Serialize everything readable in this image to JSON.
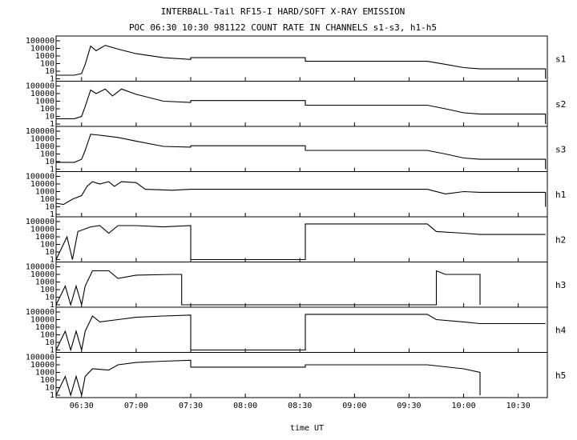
{
  "title": "INTERBALL-Tail RF15-I HARD/SOFT X-RAY EMISSION",
  "subtitle": "POC 06:30 10:30 981122  COUNT RATE IN CHANNELS s1-s3, h1-h5",
  "chart_data": {
    "type": "line",
    "title": "INTERBALL-Tail RF15-I HARD/SOFT X-RAY EMISSION",
    "subtitle": "POC 06:30 10:30 981122  COUNT RATE IN CHANNELS s1-s3, h1-h5",
    "xlabel": "time UT",
    "x_ticks": [
      "06:30",
      "07:00",
      "07:30",
      "08:00",
      "08:30",
      "09:00",
      "09:30",
      "10:00",
      "10:30"
    ],
    "x_range": [
      "06:16",
      "10:46"
    ],
    "y_scale": "log",
    "y_ticks": [
      "1",
      "10",
      "100",
      "1000",
      "10000",
      "100000"
    ],
    "y_range": [
      1,
      100000
    ],
    "panels": [
      {
        "name": "s1",
        "series": [
          {
            "x": "06:16",
            "y": 3
          },
          {
            "x": "06:26",
            "y": 3
          },
          {
            "x": "06:30",
            "y": 5
          },
          {
            "x": "06:32",
            "y": 80
          },
          {
            "x": "06:35",
            "y": 20000
          },
          {
            "x": "06:38",
            "y": 5000
          },
          {
            "x": "06:43",
            "y": 25000
          },
          {
            "x": "06:50",
            "y": 8000
          },
          {
            "x": "07:00",
            "y": 2000
          },
          {
            "x": "07:15",
            "y": 600
          },
          {
            "x": "07:30",
            "y": 350
          },
          {
            "x": "07:30",
            "y": 600
          },
          {
            "x": "08:33",
            "y": 600
          },
          {
            "x": "08:33",
            "y": 200
          },
          {
            "x": "09:40",
            "y": 200
          },
          {
            "x": "09:50",
            "y": 80
          },
          {
            "x": "10:00",
            "y": 30
          },
          {
            "x": "10:09",
            "y": 20
          },
          {
            "x": "10:45",
            "y": 20
          },
          {
            "x": "10:45",
            "y": 1
          }
        ]
      },
      {
        "name": "s2",
        "series": [
          {
            "x": "06:16",
            "y": 5
          },
          {
            "x": "06:26",
            "y": 5
          },
          {
            "x": "06:30",
            "y": 10
          },
          {
            "x": "06:32",
            "y": 200
          },
          {
            "x": "06:35",
            "y": 30000
          },
          {
            "x": "06:38",
            "y": 10000
          },
          {
            "x": "06:43",
            "y": 40000
          },
          {
            "x": "06:47",
            "y": 5000
          },
          {
            "x": "06:52",
            "y": 40000
          },
          {
            "x": "07:00",
            "y": 8000
          },
          {
            "x": "07:15",
            "y": 1000
          },
          {
            "x": "07:30",
            "y": 700
          },
          {
            "x": "07:30",
            "y": 1200
          },
          {
            "x": "08:33",
            "y": 1200
          },
          {
            "x": "08:33",
            "y": 300
          },
          {
            "x": "09:40",
            "y": 300
          },
          {
            "x": "09:50",
            "y": 100
          },
          {
            "x": "10:00",
            "y": 30
          },
          {
            "x": "10:09",
            "y": 20
          },
          {
            "x": "10:45",
            "y": 20
          },
          {
            "x": "10:45",
            "y": 1
          }
        ]
      },
      {
        "name": "s3",
        "series": [
          {
            "x": "06:16",
            "y": 8
          },
          {
            "x": "06:26",
            "y": 8
          },
          {
            "x": "06:30",
            "y": 20
          },
          {
            "x": "06:32",
            "y": 300
          },
          {
            "x": "06:35",
            "y": 40000
          },
          {
            "x": "06:40",
            "y": 30000
          },
          {
            "x": "06:50",
            "y": 15000
          },
          {
            "x": "07:00",
            "y": 5000
          },
          {
            "x": "07:15",
            "y": 1000
          },
          {
            "x": "07:30",
            "y": 800
          },
          {
            "x": "07:30",
            "y": 1200
          },
          {
            "x": "08:33",
            "y": 1200
          },
          {
            "x": "08:33",
            "y": 300
          },
          {
            "x": "09:40",
            "y": 300
          },
          {
            "x": "09:50",
            "y": 100
          },
          {
            "x": "10:00",
            "y": 30
          },
          {
            "x": "10:09",
            "y": 20
          },
          {
            "x": "10:45",
            "y": 20
          },
          {
            "x": "10:45",
            "y": 1
          }
        ]
      },
      {
        "name": "h1",
        "series": [
          {
            "x": "06:16",
            "y": 30
          },
          {
            "x": "06:20",
            "y": 20
          },
          {
            "x": "06:25",
            "y": 100
          },
          {
            "x": "06:30",
            "y": 300
          },
          {
            "x": "06:33",
            "y": 5000
          },
          {
            "x": "06:36",
            "y": 20000
          },
          {
            "x": "06:40",
            "y": 10000
          },
          {
            "x": "06:45",
            "y": 20000
          },
          {
            "x": "06:48",
            "y": 5000
          },
          {
            "x": "06:52",
            "y": 20000
          },
          {
            "x": "07:00",
            "y": 15000
          },
          {
            "x": "07:05",
            "y": 2000
          },
          {
            "x": "07:20",
            "y": 1500
          },
          {
            "x": "07:30",
            "y": 2000
          },
          {
            "x": "08:33",
            "y": 2000
          },
          {
            "x": "09:20",
            "y": 2000
          },
          {
            "x": "09:40",
            "y": 2000
          },
          {
            "x": "09:50",
            "y": 500
          },
          {
            "x": "10:00",
            "y": 1000
          },
          {
            "x": "10:09",
            "y": 800
          },
          {
            "x": "10:45",
            "y": 800
          },
          {
            "x": "10:45",
            "y": 10
          }
        ]
      },
      {
        "name": "h2",
        "series": [
          {
            "x": "06:16",
            "y": 1
          },
          {
            "x": "06:22",
            "y": 1000
          },
          {
            "x": "06:25",
            "y": 1
          },
          {
            "x": "06:28",
            "y": 5000
          },
          {
            "x": "06:35",
            "y": 20000
          },
          {
            "x": "06:40",
            "y": 30000
          },
          {
            "x": "06:45",
            "y": 3000
          },
          {
            "x": "06:50",
            "y": 30000
          },
          {
            "x": "07:00",
            "y": 30000
          },
          {
            "x": "07:15",
            "y": 20000
          },
          {
            "x": "07:30",
            "y": 30000
          },
          {
            "x": "07:30",
            "y": 1
          },
          {
            "x": "08:33",
            "y": 1
          },
          {
            "x": "08:33",
            "y": 50000
          },
          {
            "x": "09:40",
            "y": 50000
          },
          {
            "x": "09:45",
            "y": 5000
          },
          {
            "x": "10:00",
            "y": 3000
          },
          {
            "x": "10:09",
            "y": 2000
          },
          {
            "x": "10:45",
            "y": 2000
          }
        ]
      },
      {
        "name": "h3",
        "series": [
          {
            "x": "06:16",
            "y": 1
          },
          {
            "x": "06:21",
            "y": 300
          },
          {
            "x": "06:24",
            "y": 1
          },
          {
            "x": "06:27",
            "y": 300
          },
          {
            "x": "06:30",
            "y": 1
          },
          {
            "x": "06:32",
            "y": 300
          },
          {
            "x": "06:36",
            "y": 30000
          },
          {
            "x": "06:45",
            "y": 30000
          },
          {
            "x": "06:50",
            "y": 3000
          },
          {
            "x": "07:00",
            "y": 8000
          },
          {
            "x": "07:20",
            "y": 10000
          },
          {
            "x": "07:25",
            "y": 10000
          },
          {
            "x": "07:25",
            "y": 1
          },
          {
            "x": "09:45",
            "y": 1
          },
          {
            "x": "09:45",
            "y": 30000
          },
          {
            "x": "09:50",
            "y": 10000
          },
          {
            "x": "10:09",
            "y": 10000
          },
          {
            "x": "10:09",
            "y": 1
          }
        ]
      },
      {
        "name": "h4",
        "series": [
          {
            "x": "06:16",
            "y": 1
          },
          {
            "x": "06:21",
            "y": 300
          },
          {
            "x": "06:24",
            "y": 1
          },
          {
            "x": "06:27",
            "y": 300
          },
          {
            "x": "06:30",
            "y": 1
          },
          {
            "x": "06:32",
            "y": 300
          },
          {
            "x": "06:36",
            "y": 30000
          },
          {
            "x": "06:40",
            "y": 5000
          },
          {
            "x": "06:50",
            "y": 10000
          },
          {
            "x": "07:00",
            "y": 20000
          },
          {
            "x": "07:15",
            "y": 30000
          },
          {
            "x": "07:30",
            "y": 40000
          },
          {
            "x": "07:30",
            "y": 1
          },
          {
            "x": "08:33",
            "y": 1
          },
          {
            "x": "08:33",
            "y": 50000
          },
          {
            "x": "09:40",
            "y": 50000
          },
          {
            "x": "09:45",
            "y": 10000
          },
          {
            "x": "10:00",
            "y": 5000
          },
          {
            "x": "10:09",
            "y": 3000
          },
          {
            "x": "10:45",
            "y": 3000
          }
        ]
      },
      {
        "name": "h5",
        "series": [
          {
            "x": "06:16",
            "y": 1
          },
          {
            "x": "06:21",
            "y": 300
          },
          {
            "x": "06:24",
            "y": 1
          },
          {
            "x": "06:27",
            "y": 300
          },
          {
            "x": "06:30",
            "y": 1
          },
          {
            "x": "06:32",
            "y": 300
          },
          {
            "x": "06:36",
            "y": 3000
          },
          {
            "x": "06:45",
            "y": 2000
          },
          {
            "x": "06:50",
            "y": 10000
          },
          {
            "x": "07:00",
            "y": 20000
          },
          {
            "x": "07:15",
            "y": 30000
          },
          {
            "x": "07:30",
            "y": 40000
          },
          {
            "x": "07:30",
            "y": 5000
          },
          {
            "x": "08:33",
            "y": 5000
          },
          {
            "x": "08:33",
            "y": 10000
          },
          {
            "x": "09:40",
            "y": 10000
          },
          {
            "x": "10:00",
            "y": 3000
          },
          {
            "x": "10:09",
            "y": 1000
          },
          {
            "x": "10:09",
            "y": 1
          }
        ]
      }
    ]
  }
}
